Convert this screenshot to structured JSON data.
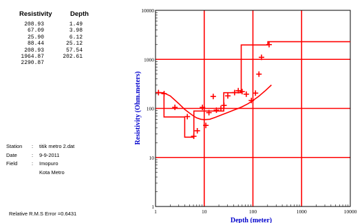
{
  "table": {
    "header_resistivity": "Resistivity",
    "header_depth": "Depth",
    "resistivity": [
      "208.93",
      "67.09",
      "25.90",
      "88.44",
      "208.93",
      "1964.87",
      "2290.87"
    ],
    "depth": [
      "1.49",
      "3.98",
      "6.12",
      "25.12",
      "57.54",
      "202.61"
    ]
  },
  "info": {
    "station_label": "Station",
    "station_value": "titik metro 2.dat",
    "date_label": "Date",
    "date_value": "9-9-2011",
    "field_label": "Field",
    "field_value_1": "Imopuro",
    "field_value_2": "Kota Metro",
    "rms": "Relative R.M.S Error =0.6431"
  },
  "colors": {
    "plot": "#ff0000",
    "axis_label": "#0000cc",
    "frame": "#000000"
  },
  "chart_data": {
    "type": "scatter",
    "xlabel": "Depth (meter)",
    "ylabel": "Resistivity (Ohm.meters)",
    "xscale": "log",
    "yscale": "log",
    "xlim": [
      1,
      10000
    ],
    "ylim": [
      1,
      10000
    ],
    "grid": true,
    "x_ticks": [
      "1",
      "10",
      "100",
      "1000",
      "10000"
    ],
    "y_ticks": [
      "1",
      "10",
      "100",
      "1000",
      "10000"
    ],
    "series": [
      {
        "kind": "points",
        "x": [
          1.15,
          1.5,
          2.5,
          4.5,
          6.1,
          7.2,
          9.2,
          10.8,
          12.5,
          15.3,
          17.8,
          22,
          25.5,
          30.5,
          42,
          50,
          60,
          73,
          93,
          113,
          133,
          150,
          215
        ],
        "y": [
          210,
          200,
          105,
          68,
          27,
          35,
          105,
          45,
          82,
          175,
          92,
          100,
          115,
          180,
          210,
          230,
          220,
          195,
          145,
          205,
          500,
          1100,
          2000
        ]
      },
      {
        "kind": "layered_model",
        "x": [
          1.08,
          1.49,
          1.49,
          3.98,
          3.98,
          6.12,
          6.12,
          25.12,
          25.12,
          57.54,
          57.54,
          202.61,
          202.61,
          10000
        ],
        "y": [
          208.93,
          208.93,
          67.09,
          67.09,
          25.9,
          25.9,
          88.44,
          88.44,
          208.93,
          208.93,
          1964.87,
          1964.87,
          2290.87,
          2290.87
        ]
      },
      {
        "kind": "calculated_curve",
        "x": [
          1.08,
          1.5,
          2,
          3,
          4,
          5,
          6,
          7,
          8.5,
          10,
          13,
          17,
          22,
          30,
          40,
          50,
          60,
          80,
          100,
          130,
          180,
          240
        ],
        "y": [
          210,
          205,
          180,
          125,
          95,
          80,
          70,
          64,
          60,
          59,
          60,
          66,
          73,
          82,
          92,
          100,
          108,
          125,
          145,
          175,
          230,
          300
        ]
      }
    ]
  }
}
